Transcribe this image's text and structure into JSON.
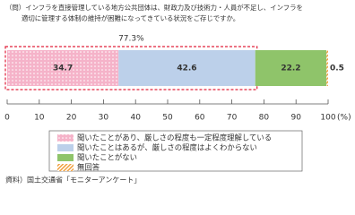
{
  "chart_data": {
    "type": "stacked-bar-horizontal",
    "question": [
      "（問）インフラを直接管理している地方公共団体は、財政力及び技術力・人員が不足し、インフラを",
      "適切に管理する体制の維持が困難になってきている状況をご存じですか。"
    ],
    "categories": [
      null
    ],
    "series": [
      {
        "name": "聞いたことがあり、厳しさの程度も一定程度理解している",
        "color": "#f5b3c9",
        "pattern": "dots",
        "values": [
          34.7
        ]
      },
      {
        "name": "聞いたことはあるが、厳しさの程度はよくわからない",
        "color": "#bcd0ea",
        "values": [
          42.6
        ]
      },
      {
        "name": "聞いたことがない",
        "color": "#8fc46a",
        "values": [
          22.2
        ]
      },
      {
        "name": "無回答",
        "color": "#f0a040",
        "pattern": "hatch",
        "values": [
          0.5
        ]
      }
    ],
    "annotation": "77.3%",
    "xlim": [
      0,
      100
    ],
    "xticks": [
      0,
      10,
      20,
      30,
      40,
      50,
      60,
      70,
      80,
      90,
      100
    ],
    "x_unit": "(%)",
    "source": "資料）国土交通省「モニターアンケート」"
  }
}
